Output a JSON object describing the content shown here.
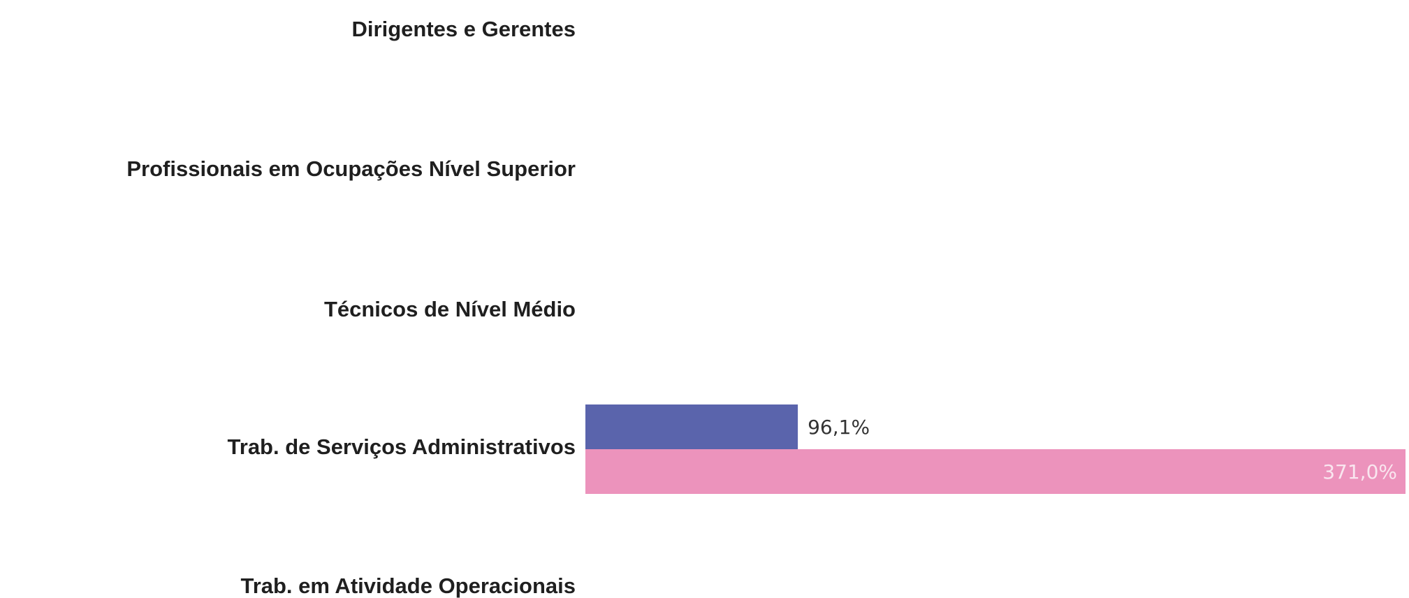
{
  "chart_data": {
    "type": "bar",
    "orientation": "horizontal",
    "categories": [
      "Dirigentes e Gerentes",
      "Profissionais em Ocupações Nível Superior",
      "Técnicos de Nível Médio",
      "Trab. de Serviços Administrativos",
      "Trab. em Atividade Operacionais"
    ],
    "series": [
      {
        "color": "#5a64ac",
        "values": [
          null,
          null,
          null,
          96.1,
          null
        ],
        "labels": [
          "",
          "",
          "",
          "96,1%",
          ""
        ],
        "label_color": "#333333",
        "label_position": "outside"
      },
      {
        "color": "#ec93bc",
        "values": [
          null,
          null,
          null,
          371.0,
          null
        ],
        "labels": [
          "",
          "",
          "",
          "371,0%",
          ""
        ],
        "label_color": "#f9e6ef",
        "label_position": "inside-end"
      }
    ],
    "xlim": [
      0,
      371.0
    ],
    "grid": false,
    "legend": "none"
  }
}
